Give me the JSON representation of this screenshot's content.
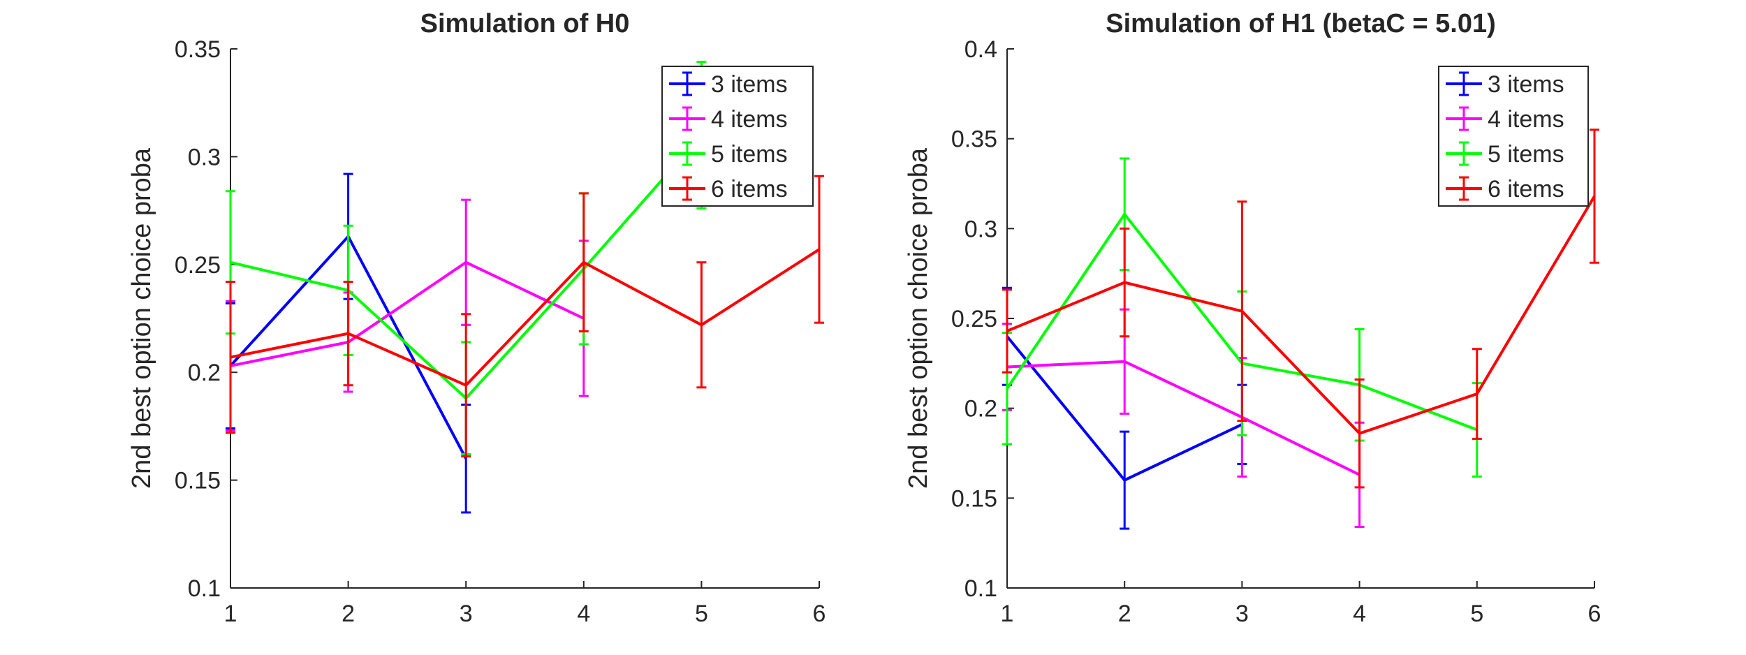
{
  "chart_data": [
    {
      "type": "line",
      "title": "Simulation of H0",
      "xlabel": "",
      "ylabel": "2nd best option choice proba",
      "xlim": [
        1,
        6
      ],
      "ylim": [
        0.1,
        0.35
      ],
      "xticks": [
        1,
        2,
        3,
        4,
        5,
        6
      ],
      "xtick_labels": [
        "1",
        "2",
        "3",
        "4",
        "5",
        "6"
      ],
      "yticks": [
        0.1,
        0.15,
        0.2,
        0.25,
        0.3,
        0.35
      ],
      "ytick_labels": [
        "0.1",
        "0.15",
        "0.2",
        "0.25",
        "0.3",
        "0.35"
      ],
      "grid": false,
      "legend_position": "top-right",
      "error_bars": true,
      "series": [
        {
          "name": "3 items",
          "color": "#0000ff",
          "x": [
            1,
            2,
            3
          ],
          "y": [
            0.203,
            0.263,
            0.16
          ],
          "err": [
            0.029,
            0.029,
            0.025
          ]
        },
        {
          "name": "4 items",
          "color": "#ff00ff",
          "x": [
            1,
            2,
            3,
            4
          ],
          "y": [
            0.203,
            0.214,
            0.251,
            0.225
          ],
          "err": [
            0.03,
            0.023,
            0.029,
            0.036
          ]
        },
        {
          "name": "5 items",
          "color": "#00ff00",
          "x": [
            1,
            2,
            3,
            4,
            5
          ],
          "y": [
            0.251,
            0.238,
            0.188,
            0.248,
            0.31
          ],
          "err": [
            0.033,
            0.03,
            0.026,
            0.035,
            0.034
          ]
        },
        {
          "name": "6 items",
          "color": "#ff0000",
          "x": [
            1,
            2,
            3,
            4,
            5,
            6
          ],
          "y": [
            0.207,
            0.218,
            0.194,
            0.251,
            0.222,
            0.257
          ],
          "err": [
            0.035,
            0.024,
            0.033,
            0.032,
            0.029,
            0.034
          ]
        }
      ]
    },
    {
      "type": "line",
      "title": "Simulation of H1 (betaC = 5.01)",
      "xlabel": "",
      "ylabel": "2nd best option choice proba",
      "xlim": [
        1,
        6
      ],
      "ylim": [
        0.1,
        0.4
      ],
      "xticks": [
        1,
        2,
        3,
        4,
        5,
        6
      ],
      "xtick_labels": [
        "1",
        "2",
        "3",
        "4",
        "5",
        "6"
      ],
      "yticks": [
        0.1,
        0.15,
        0.2,
        0.25,
        0.3,
        0.35,
        0.4
      ],
      "ytick_labels": [
        "0.1",
        "0.15",
        "0.2",
        "0.25",
        "0.3",
        "0.35",
        "0.4"
      ],
      "grid": false,
      "legend_position": "top-right",
      "error_bars": true,
      "series": [
        {
          "name": "3 items",
          "color": "#0000ff",
          "x": [
            1,
            2,
            3
          ],
          "y": [
            0.24,
            0.16,
            0.191
          ],
          "err": [
            0.027,
            0.027,
            0.022
          ]
        },
        {
          "name": "4 items",
          "color": "#ff00ff",
          "x": [
            1,
            2,
            3,
            4
          ],
          "y": [
            0.223,
            0.226,
            0.195,
            0.163
          ],
          "err": [
            0.024,
            0.029,
            0.033,
            0.029
          ]
        },
        {
          "name": "5 items",
          "color": "#00ff00",
          "x": [
            1,
            2,
            3,
            4,
            5
          ],
          "y": [
            0.211,
            0.308,
            0.225,
            0.213,
            0.188
          ],
          "err": [
            0.031,
            0.031,
            0.04,
            0.031,
            0.026
          ]
        },
        {
          "name": "6 items",
          "color": "#ff0000",
          "x": [
            1,
            2,
            3,
            4,
            5,
            6
          ],
          "y": [
            0.243,
            0.27,
            0.254,
            0.186,
            0.208,
            0.318
          ],
          "err": [
            0.023,
            0.03,
            0.061,
            0.03,
            0.025,
            0.037
          ]
        }
      ]
    }
  ]
}
